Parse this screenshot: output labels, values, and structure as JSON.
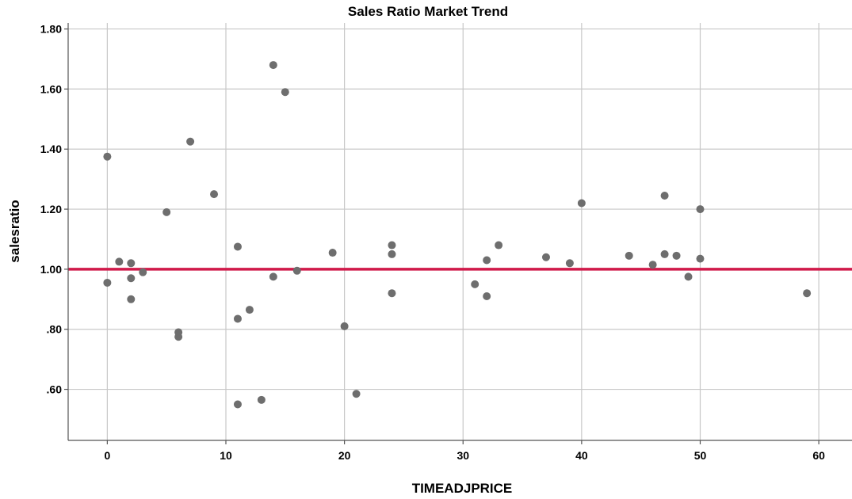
{
  "chart_data": {
    "type": "scatter",
    "title": "Sales Ratio Market Trend",
    "xlabel": "TIMEADJPRICE",
    "ylabel": "salesratio",
    "xlim": [
      -3.3,
      62.8
    ],
    "ylim": [
      0.43,
      1.82
    ],
    "x_ticks": [
      0,
      10,
      20,
      30,
      40,
      50,
      60
    ],
    "x_tick_labels": [
      "0",
      "10",
      "20",
      "30",
      "40",
      "50",
      "60"
    ],
    "y_ticks": [
      0.6,
      0.8,
      1.0,
      1.2,
      1.4,
      1.6,
      1.8
    ],
    "y_tick_labels": [
      ".60",
      ".80",
      "1.00",
      "1.20",
      "1.40",
      "1.60",
      "1.80"
    ],
    "grid": true,
    "reference_line": {
      "y": 1.0,
      "color": "#d0194a"
    },
    "point_color": "#6e6e6e",
    "points": [
      {
        "x": 0,
        "y": 1.375
      },
      {
        "x": 0,
        "y": 0.955
      },
      {
        "x": 1,
        "y": 1.025
      },
      {
        "x": 2,
        "y": 1.02
      },
      {
        "x": 2,
        "y": 0.97
      },
      {
        "x": 2,
        "y": 0.9
      },
      {
        "x": 3,
        "y": 0.99
      },
      {
        "x": 5,
        "y": 1.19
      },
      {
        "x": 6,
        "y": 0.79
      },
      {
        "x": 6,
        "y": 0.775
      },
      {
        "x": 7,
        "y": 1.425
      },
      {
        "x": 9,
        "y": 1.25
      },
      {
        "x": 11,
        "y": 1.075
      },
      {
        "x": 11,
        "y": 0.835
      },
      {
        "x": 11,
        "y": 0.55
      },
      {
        "x": 12,
        "y": 0.865
      },
      {
        "x": 13,
        "y": 0.565
      },
      {
        "x": 14,
        "y": 1.68
      },
      {
        "x": 14,
        "y": 0.975
      },
      {
        "x": 15,
        "y": 1.59
      },
      {
        "x": 16,
        "y": 0.995
      },
      {
        "x": 19,
        "y": 1.055
      },
      {
        "x": 20,
        "y": 0.81
      },
      {
        "x": 21,
        "y": 0.585
      },
      {
        "x": 24,
        "y": 1.08
      },
      {
        "x": 24,
        "y": 1.05
      },
      {
        "x": 24,
        "y": 0.92
      },
      {
        "x": 31,
        "y": 0.95
      },
      {
        "x": 32,
        "y": 1.03
      },
      {
        "x": 32,
        "y": 0.91
      },
      {
        "x": 33,
        "y": 1.08
      },
      {
        "x": 37,
        "y": 1.04
      },
      {
        "x": 39,
        "y": 1.02
      },
      {
        "x": 40,
        "y": 1.22
      },
      {
        "x": 44,
        "y": 1.045
      },
      {
        "x": 46,
        "y": 1.015
      },
      {
        "x": 47,
        "y": 1.245
      },
      {
        "x": 47,
        "y": 1.05
      },
      {
        "x": 48,
        "y": 1.045
      },
      {
        "x": 49,
        "y": 0.975
      },
      {
        "x": 50,
        "y": 1.2
      },
      {
        "x": 50,
        "y": 1.035
      },
      {
        "x": 59,
        "y": 0.92
      }
    ]
  }
}
